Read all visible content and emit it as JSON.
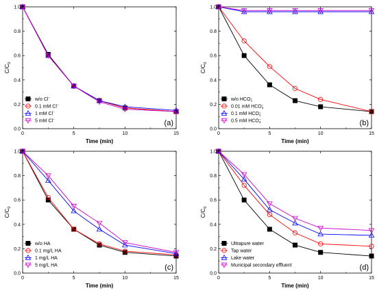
{
  "chart_data": [
    {
      "type": "line",
      "panel": "(a)",
      "xlabel": "Time (min)",
      "ylabel": "C/C0",
      "xlim": [
        0,
        15
      ],
      "ylim": [
        0,
        1.0
      ],
      "x_ticks": [
        "0",
        "5",
        "10",
        "15"
      ],
      "y_ticks": [
        "0.0",
        "0.2",
        "0.4",
        "0.6",
        "0.8",
        "1.0"
      ],
      "x": [
        0,
        2.5,
        5,
        7.5,
        10,
        15
      ],
      "legend_position": "bottom-left",
      "series": [
        {
          "name": "w/o Cl",
          "sup": "−",
          "sub": "",
          "color": "#000000",
          "marker": "square-filled",
          "values": [
            1.0,
            0.61,
            0.35,
            0.23,
            0.17,
            0.14
          ]
        },
        {
          "name": "0.1 mM Cl",
          "sup": "−",
          "sub": "",
          "color": "#ff0000",
          "marker": "circle-open",
          "values": [
            1.0,
            0.6,
            0.35,
            0.23,
            0.17,
            0.14
          ]
        },
        {
          "name": "1    mM Cl",
          "sup": "−",
          "sub": "",
          "color": "#0000ff",
          "marker": "triangle-up-open",
          "values": [
            1.0,
            0.6,
            0.35,
            0.23,
            0.18,
            0.15
          ]
        },
        {
          "name": "5    mM Cl",
          "sup": "−",
          "sub": "",
          "color": "#cc00cc",
          "marker": "triangle-down-open",
          "values": [
            1.0,
            0.6,
            0.35,
            0.22,
            0.16,
            0.14
          ]
        }
      ]
    },
    {
      "type": "line",
      "panel": "(b)",
      "xlabel": "Time (min)",
      "ylabel": "C/C0",
      "xlim": [
        0,
        15
      ],
      "ylim": [
        0,
        1.0
      ],
      "x_ticks": [
        "0",
        "5",
        "10",
        "15"
      ],
      "y_ticks": [
        "0.0",
        "0.2",
        "0.4",
        "0.6",
        "0.8",
        "1.0"
      ],
      "x": [
        0,
        2.5,
        5,
        7.5,
        10,
        15
      ],
      "legend_position": "bottom-left",
      "series": [
        {
          "name": "w/o HCO",
          "sup": "−",
          "sub": "3",
          "color": "#000000",
          "marker": "square-filled",
          "values": [
            1.0,
            0.6,
            0.36,
            0.23,
            0.18,
            0.14
          ]
        },
        {
          "name": "0.01 mM HCO",
          "sup": "−",
          "sub": "3",
          "color": "#ff0000",
          "marker": "circle-open",
          "values": [
            1.0,
            0.72,
            0.51,
            0.33,
            0.24,
            0.14
          ]
        },
        {
          "name": "0.1 mM HCO",
          "sup": "−",
          "sub": "3",
          "color": "#0000ff",
          "marker": "triangle-up-open",
          "values": [
            1.0,
            0.96,
            0.96,
            0.96,
            0.96,
            0.96
          ]
        },
        {
          "name": "0.5 mM HCO",
          "sup": "−",
          "sub": "3",
          "color": "#cc00cc",
          "marker": "triangle-down-open",
          "values": [
            1.0,
            0.97,
            0.97,
            0.97,
            0.97,
            0.97
          ]
        }
      ]
    },
    {
      "type": "line",
      "panel": "(c)",
      "xlabel": "Time (min)",
      "ylabel": "C/C0",
      "xlim": [
        0,
        15
      ],
      "ylim": [
        0,
        1.0
      ],
      "x_ticks": [
        "0",
        "5",
        "10",
        "15"
      ],
      "y_ticks": [
        "0.0",
        "0.2",
        "0.4",
        "0.6",
        "0.8",
        "1.0"
      ],
      "x": [
        0,
        2.5,
        5,
        7.5,
        10,
        15
      ],
      "legend_position": "bottom-left",
      "series": [
        {
          "name": "w/o HA",
          "sup": "",
          "sub": "",
          "color": "#000000",
          "marker": "square-filled",
          "values": [
            1.0,
            0.6,
            0.36,
            0.23,
            0.17,
            0.14
          ]
        },
        {
          "name": "0.1 mg/L HA",
          "sup": "",
          "sub": "",
          "color": "#ff0000",
          "marker": "circle-open",
          "values": [
            1.0,
            0.62,
            0.36,
            0.24,
            0.18,
            0.15
          ]
        },
        {
          "name": "1 mg/L HA",
          "sup": "",
          "sub": "",
          "color": "#0000ff",
          "marker": "triangle-up-open",
          "values": [
            1.0,
            0.76,
            0.51,
            0.36,
            0.23,
            0.16
          ]
        },
        {
          "name": "5 mg/L HA",
          "sup": "",
          "sub": "",
          "color": "#cc00cc",
          "marker": "triangle-down-open",
          "values": [
            1.0,
            0.8,
            0.55,
            0.41,
            0.25,
            0.17
          ]
        }
      ]
    },
    {
      "type": "line",
      "panel": "(d)",
      "xlabel": "Time (min)",
      "ylabel": "C/C0",
      "xlim": [
        0,
        15
      ],
      "ylim": [
        0,
        1.0
      ],
      "x_ticks": [
        "0",
        "5",
        "10",
        "15"
      ],
      "y_ticks": [
        "0.0",
        "0.2",
        "0.4",
        "0.6",
        "0.8",
        "1.0"
      ],
      "x": [
        0,
        2.5,
        5,
        7.5,
        10,
        15
      ],
      "legend_position": "bottom-left",
      "series": [
        {
          "name": "Ultrapure water",
          "sup": "",
          "sub": "",
          "color": "#000000",
          "marker": "square-filled",
          "values": [
            1.0,
            0.6,
            0.36,
            0.23,
            0.17,
            0.14
          ]
        },
        {
          "name": "Tap water",
          "sup": "",
          "sub": "",
          "color": "#ff0000",
          "marker": "circle-open",
          "values": [
            1.0,
            0.72,
            0.48,
            0.33,
            0.24,
            0.22
          ]
        },
        {
          "name": "Lake water",
          "sup": "",
          "sub": "",
          "color": "#0000ff",
          "marker": "triangle-up-open",
          "values": [
            1.0,
            0.77,
            0.52,
            0.41,
            0.32,
            0.31
          ]
        },
        {
          "name": "Municipal secondary effluent",
          "sup": "",
          "sub": "",
          "color": "#cc00cc",
          "marker": "triangle-down-open",
          "values": [
            1.0,
            0.81,
            0.57,
            0.45,
            0.37,
            0.35
          ]
        }
      ]
    }
  ]
}
